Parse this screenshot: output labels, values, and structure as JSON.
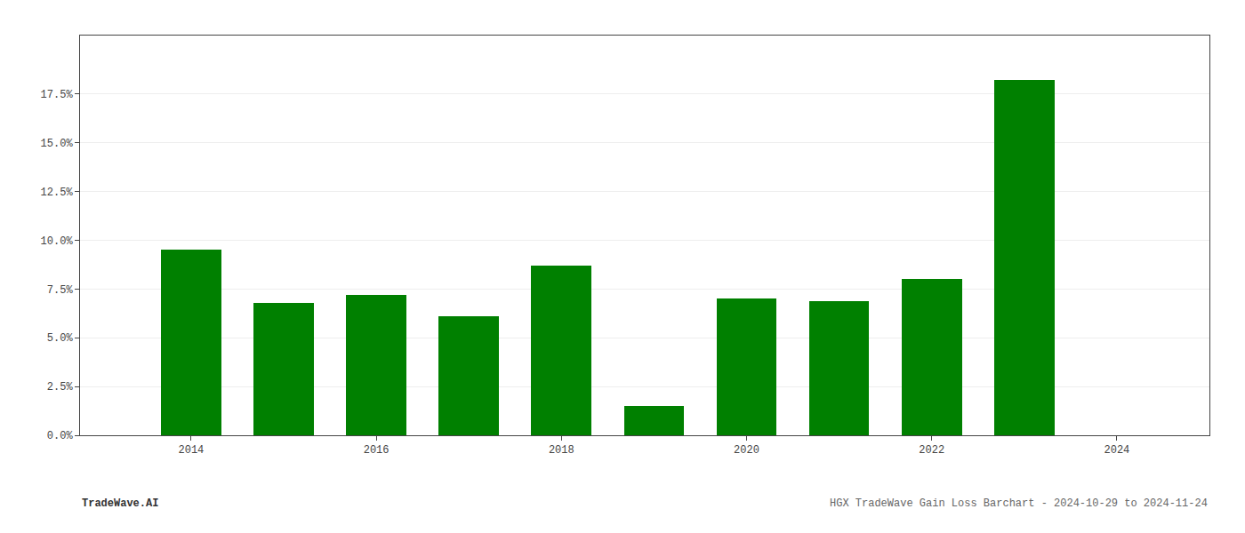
{
  "chart_data": {
    "type": "bar",
    "x": [
      2014,
      2015,
      2016,
      2017,
      2018,
      2019,
      2020,
      2021,
      2022,
      2023
    ],
    "values": [
      0.095,
      0.068,
      0.072,
      0.061,
      0.087,
      0.015,
      0.07,
      0.069,
      0.08,
      0.182
    ],
    "color": "#008000",
    "xlim": [
      2012.8,
      2025.0
    ],
    "xticks": [
      2014,
      2016,
      2018,
      2020,
      2022,
      2024
    ],
    "ylim": [
      0.0,
      0.205
    ],
    "yticks": [
      {
        "value": 0.0,
        "label": "0.0%"
      },
      {
        "value": 0.025,
        "label": "2.5%"
      },
      {
        "value": 0.05,
        "label": "5.0%"
      },
      {
        "value": 0.075,
        "label": "7.5%"
      },
      {
        "value": 0.1,
        "label": "10.0%"
      },
      {
        "value": 0.125,
        "label": "12.5%"
      },
      {
        "value": 0.15,
        "label": "15.0%"
      },
      {
        "value": 0.175,
        "label": "17.5%"
      }
    ],
    "grid": true,
    "annotations": [
      "TradeWave.AI",
      "HGX TradeWave Gain Loss Barchart - 2024-10-29 to 2024-11-24"
    ]
  }
}
